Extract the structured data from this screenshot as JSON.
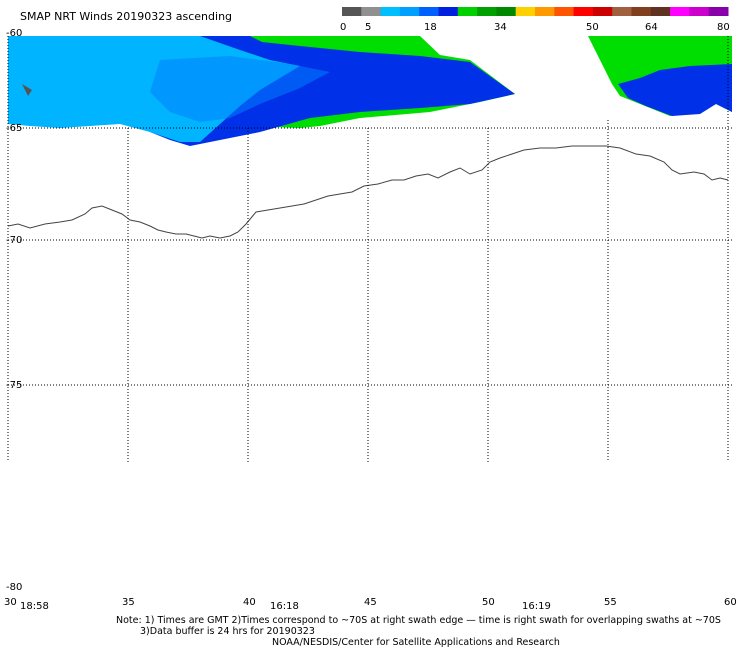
{
  "title": "SMAP NRT Winds 20190323 ascending",
  "colorbar": {
    "ticks": [
      "0",
      "5",
      "18",
      "34",
      "50",
      "64",
      "80"
    ],
    "colors": [
      "#555555",
      "#909090",
      "#00bfff",
      "#00a0ff",
      "#0060ff",
      "#0020e0",
      "#00d000",
      "#00a000",
      "#008800",
      "#ffd000",
      "#ff9900",
      "#ff5500",
      "#ff0000",
      "#cc0000",
      "#a06040",
      "#804020",
      "#603020",
      "#ff00ff",
      "#cc00cc",
      "#8800aa"
    ]
  },
  "lat_labels": [
    "-60",
    "-65",
    "-70",
    "-75",
    "-80"
  ],
  "lon_labels": [
    "30",
    "35",
    "40",
    "45",
    "50",
    "55",
    "60"
  ],
  "time_labels": [
    "18:58",
    "16:18",
    "16:19"
  ],
  "notes": {
    "line1": "Note: 1) Times are GMT 2)Times correspond to ~70S at right swath edge — time is right swath for overlapping swaths at ~70S",
    "line2": "3)Data buffer is 24 hrs for 20190323",
    "line3": "NOAA/NESDIS/Center for Satellite Applications and Research"
  },
  "colors": {
    "light_blue": "#00b4ff",
    "dark_blue": "#0030e8",
    "green": "#00dd00",
    "coast": "#444444"
  }
}
